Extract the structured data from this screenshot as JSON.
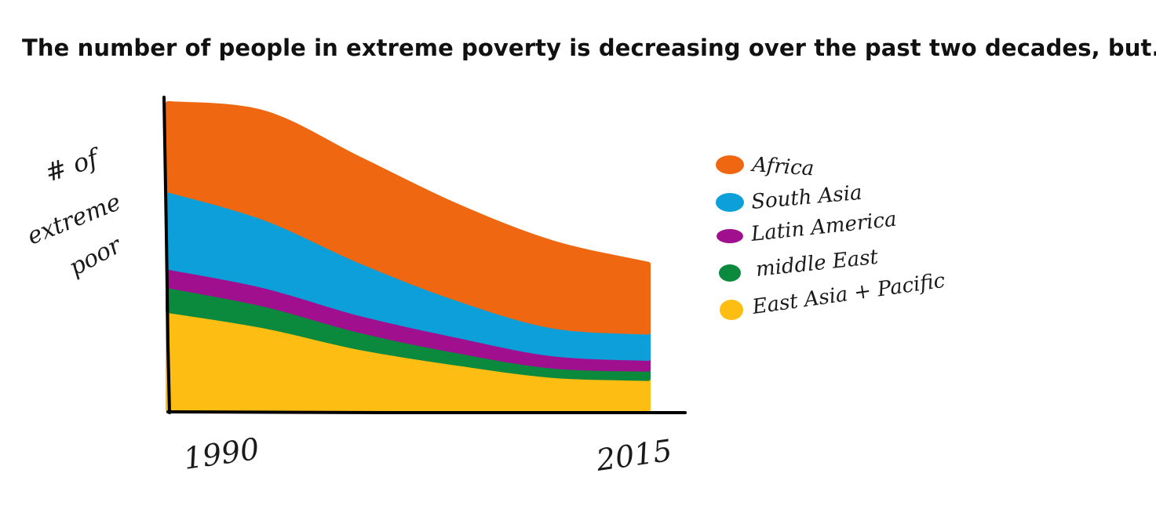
{
  "title": "The number of people in extreme poverty is decreasing over the past two decades, but...",
  "chart_data": {
    "type": "area",
    "stacked": true,
    "ylabel": [
      "# of",
      "extreme",
      "poor"
    ],
    "xlabel": "",
    "x": [
      1990,
      1995,
      2000,
      2005,
      2010,
      2015
    ],
    "x_tick_labels": [
      "1990",
      "2015"
    ],
    "ylim": [
      0,
      100
    ],
    "series": [
      {
        "name": "East Asia + Pacific",
        "color": "#FDBD12",
        "values": [
          32,
          27,
          20,
          15,
          11,
          10
        ]
      },
      {
        "name": "Middle East",
        "color": "#0B8A3E",
        "values": [
          8,
          7,
          5.5,
          4,
          3,
          3
        ]
      },
      {
        "name": "Latin America",
        "color": "#A0108E",
        "values": [
          6,
          6,
          5.5,
          5,
          4,
          3.5
        ]
      },
      {
        "name": "South Asia",
        "color": "#0C9FD9",
        "values": [
          25,
          22,
          17,
          12,
          9,
          8.5
        ]
      },
      {
        "name": "Africa",
        "color": "#F06712",
        "values": [
          28,
          34,
          33,
          30,
          27,
          22
        ]
      }
    ],
    "legend": {
      "position": "right",
      "items": [
        "Africa",
        "South Asia",
        "Latin America",
        "middle East",
        "East Asia + Pacific"
      ]
    }
  }
}
